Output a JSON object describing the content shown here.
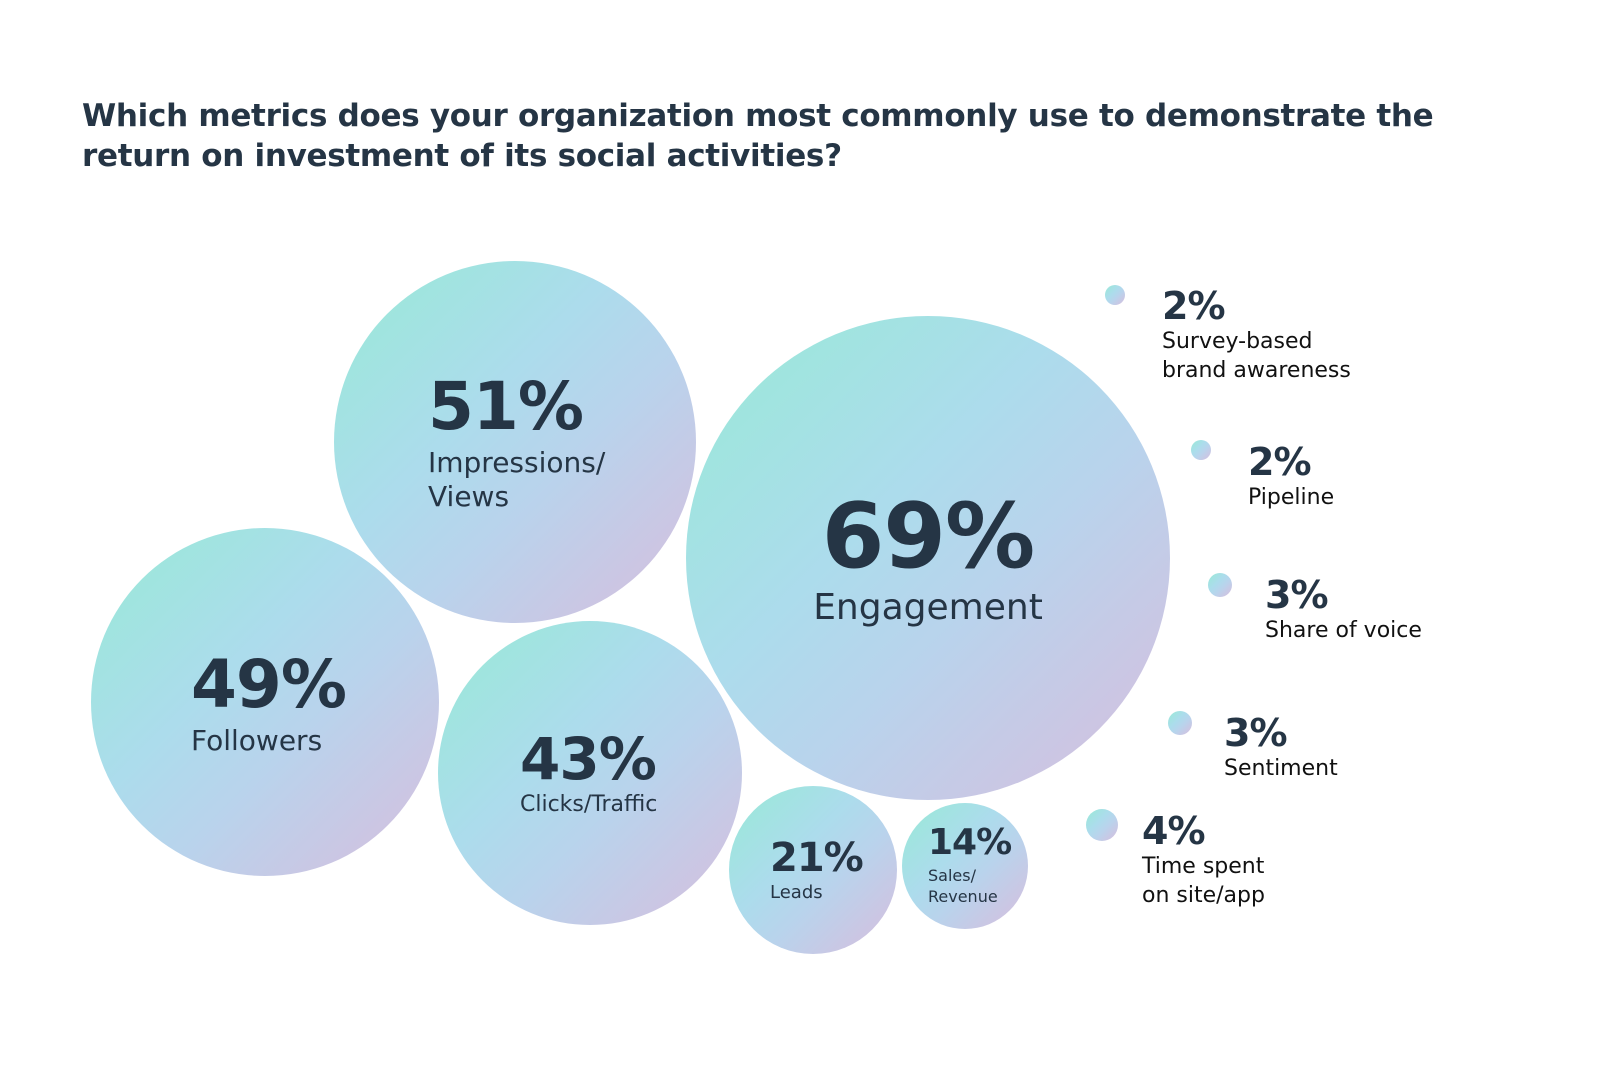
{
  "chart_data": {
    "type": "bubble",
    "title": "Which metrics does your organization most commonly use to demonstrate the return on investment of its social activities?",
    "unit": "%",
    "gradient_colors": [
      "#98ead6",
      "#acdcec",
      "#d8bddd"
    ],
    "text_color": "#253545",
    "items": [
      {
        "value": 69,
        "value_label": "69%",
        "label_lines": [
          "Engagement"
        ]
      },
      {
        "value": 51,
        "value_label": "51%",
        "label_lines": [
          "Impressions/",
          "Views"
        ]
      },
      {
        "value": 49,
        "value_label": "49%",
        "label_lines": [
          "Followers"
        ]
      },
      {
        "value": 43,
        "value_label": "43%",
        "label_lines": [
          "Clicks/Traffic"
        ]
      },
      {
        "value": 21,
        "value_label": "21%",
        "label_lines": [
          "Leads"
        ]
      },
      {
        "value": 14,
        "value_label": "14%",
        "label_lines": [
          "Sales/",
          "Revenue"
        ]
      },
      {
        "value": 2,
        "value_label": "2%",
        "label_lines": [
          "Survey-based",
          "brand awareness"
        ]
      },
      {
        "value": 2,
        "value_label": "2%",
        "label_lines": [
          "Pipeline"
        ]
      },
      {
        "value": 3,
        "value_label": "3%",
        "label_lines": [
          "Share of voice"
        ]
      },
      {
        "value": 3,
        "value_label": "3%",
        "label_lines": [
          "Sentiment"
        ]
      },
      {
        "value": 4,
        "value_label": "4%",
        "label_lines": [
          "Time spent",
          "on site/app"
        ]
      }
    ]
  }
}
